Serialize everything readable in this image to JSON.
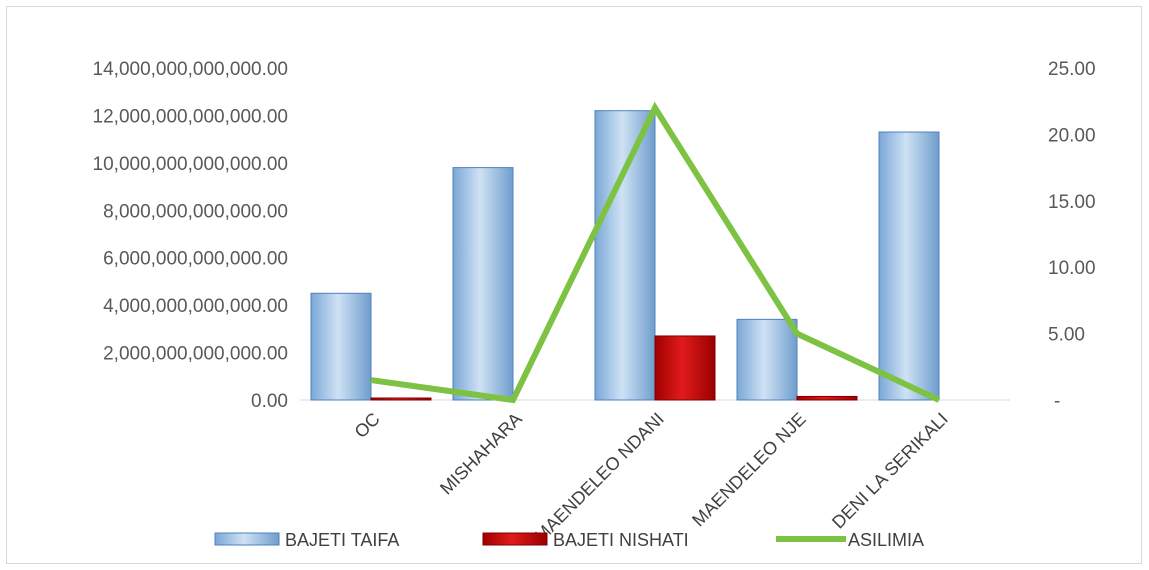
{
  "chart_data": {
    "type": "bar",
    "categories": [
      "OC",
      "MISHAHARA",
      "MAENDELEO NDANI",
      "MAENDELEO NJE",
      "DENI LA SERIKALI"
    ],
    "series": [
      {
        "name": "BAJETI TAIFA",
        "type": "bar",
        "axis": "left",
        "values": [
          4500000000000,
          9800000000000,
          12200000000000,
          3400000000000,
          11300000000000
        ],
        "color": "#9dc3e6"
      },
      {
        "name": "BAJETI NISHATI",
        "type": "bar",
        "axis": "left",
        "values": [
          50000000000,
          0,
          2700000000000,
          150000000000,
          0
        ],
        "color": "#c00000"
      },
      {
        "name": "ASILIMIA",
        "type": "line",
        "axis": "right",
        "values": [
          1.5,
          0,
          22,
          5,
          0
        ],
        "color": "#7dc242"
      }
    ],
    "y_left": {
      "ylim": [
        0,
        14000000000000
      ],
      "ticks": [
        0,
        2000000000000,
        4000000000000,
        6000000000000,
        8000000000000,
        10000000000000,
        12000000000000,
        14000000000000
      ],
      "tick_labels": [
        "0.00",
        "2,000,000,000,000.00",
        "4,000,000,000,000.00",
        "6,000,000,000,000.00",
        "8,000,000,000,000.00",
        "10,000,000,000,000.00",
        "12,000,000,000,000.00",
        "14,000,000,000,000.00"
      ]
    },
    "y_right": {
      "ylim": [
        0,
        25
      ],
      "ticks": [
        0,
        5,
        10,
        15,
        20,
        25
      ],
      "tick_labels": [
        "-",
        "5.00",
        "10.00",
        "15.00",
        "20.00",
        "25.00"
      ]
    },
    "legend": [
      "BAJETI TAIFA",
      "BAJETI NISHATI",
      "ASILIMIA"
    ],
    "legend_position": "bottom",
    "grid": false
  }
}
